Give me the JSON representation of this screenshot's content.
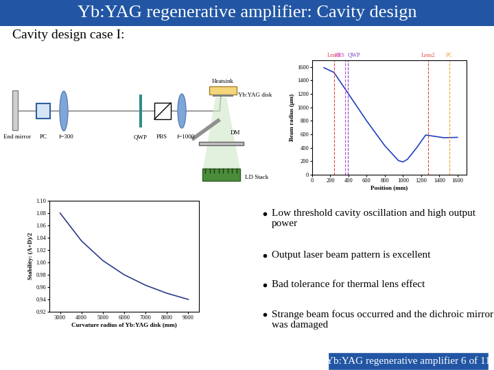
{
  "header": {
    "title": "Yb:YAG regenerative amplifier: Cavity design",
    "subtitle": "Cavity design case I:"
  },
  "diagram": {
    "labels": {
      "end_mirror": "End mirror",
      "pc": "PC",
      "lens1": "f=300",
      "qwp": "QWP",
      "pbs": "PBS",
      "lens2": "f=1000",
      "heatsink": "Heatsink",
      "disk": "Yb:YAG disk",
      "dm": "DM",
      "ld": "LD Stack"
    }
  },
  "chart_data": [
    {
      "type": "line",
      "x_label": "Position (mm)",
      "y_label": "Beam radius (μm)",
      "x": [
        130,
        240,
        400,
        600,
        800,
        950,
        1000,
        1050,
        1150,
        1250,
        1350,
        1450,
        1600
      ],
      "values": [
        1590,
        1520,
        1200,
        800,
        430,
        210,
        190,
        230,
        400,
        590,
        570,
        550,
        555
      ],
      "color": "#1f3fbf",
      "xlim": [
        0,
        1700
      ],
      "xticks": [
        0,
        200,
        400,
        600,
        800,
        1000,
        1200,
        1400,
        1600
      ],
      "ylim": [
        0,
        1700
      ],
      "yticks": [
        0,
        200,
        400,
        600,
        800,
        1000,
        1200,
        1400,
        1600
      ],
      "annotations": [
        {
          "text": "Lens1",
          "x": 240,
          "color": "#e0403a"
        },
        {
          "text": "PBS",
          "x": 360,
          "color": "#d040d0"
        },
        {
          "text": "QWP",
          "x": 390,
          "color": "#7a40c0"
        },
        {
          "text": "Lens2",
          "x": 1275,
          "color": "#e0403a"
        },
        {
          "text": "PC",
          "x": 1510,
          "color": "#f0a030"
        }
      ]
    },
    {
      "type": "line",
      "x_label": "Curvature radius of Yb:YAG disk (mm)",
      "y_label": "Stability: (A+D)/2",
      "x": [
        3000,
        4000,
        5000,
        6000,
        7000,
        8000,
        9000
      ],
      "values": [
        1.08,
        1.035,
        1.003,
        0.98,
        0.963,
        0.95,
        0.94
      ],
      "color": "#2a3a8a",
      "xlim": [
        2500,
        9500
      ],
      "xticks": [
        3000,
        4000,
        5000,
        6000,
        7000,
        8000,
        9000
      ],
      "ylim": [
        0.92,
        1.1
      ],
      "yticks": [
        0.92,
        0.94,
        0.96,
        0.98,
        {
          "value": 1.0,
          "label": "1.00"
        },
        1.02,
        1.04,
        1.06,
        1.08,
        {
          "value": 1.1,
          "label": "1.10"
        }
      ]
    }
  ],
  "bullets": [
    "Low threshold cavity oscillation and high output power",
    "Output laser beam pattern is excellent",
    "Bad tolerance for thermal lens effect",
    "Strange beam focus occurred and the dichroic mirror was damaged"
  ],
  "footer": "Yb:YAG regenerative amplifier 6 of 11"
}
